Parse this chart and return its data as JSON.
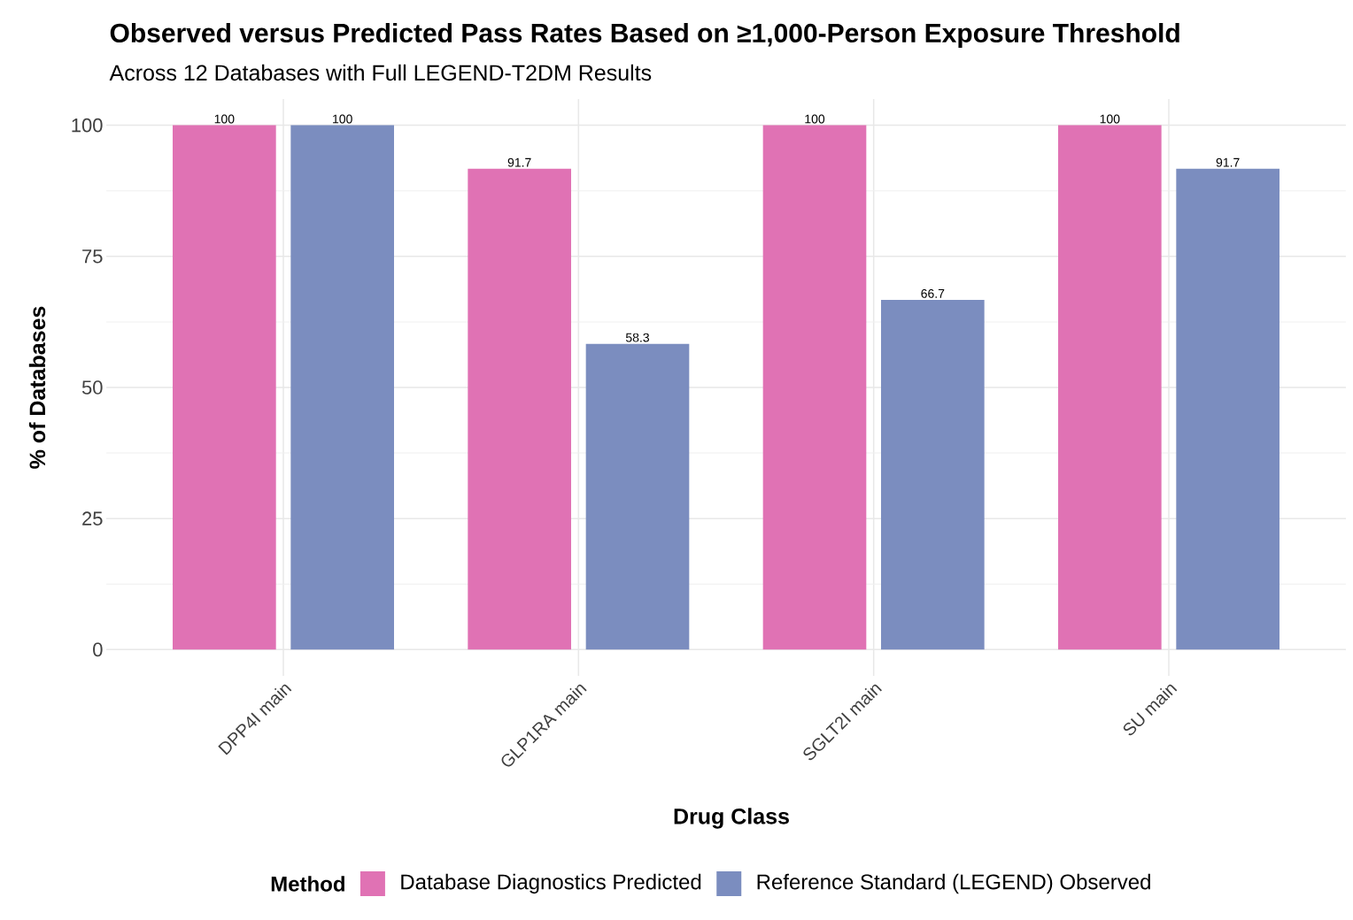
{
  "chart_data": {
    "type": "bar",
    "title": "Observed versus Predicted Pass Rates Based on ≥1,000-Person Exposure Threshold",
    "subtitle": "Across 12 Databases with Full LEGEND-T2DM Results",
    "xlabel": "Drug Class",
    "ylabel": "% of Databases",
    "legend_title": "Method",
    "categories": [
      "DPP4I main",
      "GLP1RA main",
      "SGLT2I main",
      "SU main"
    ],
    "series": [
      {
        "name": "Database Diagnostics Predicted",
        "color": "#e072b4",
        "values": [
          100,
          91.7,
          100,
          100
        ],
        "value_labels": [
          "100",
          "91.7",
          "100",
          "100"
        ]
      },
      {
        "name": "Reference Standard (LEGEND) Observed",
        "color": "#7b8dbf",
        "values": [
          100,
          58.3,
          66.7,
          91.7
        ],
        "value_labels": [
          "100",
          "58.3",
          "66.7",
          "91.7"
        ]
      }
    ],
    "ylim": [
      -5,
      105
    ],
    "yticks": [
      0,
      25,
      50,
      75,
      100
    ],
    "grid": true,
    "legend": "bottom"
  }
}
